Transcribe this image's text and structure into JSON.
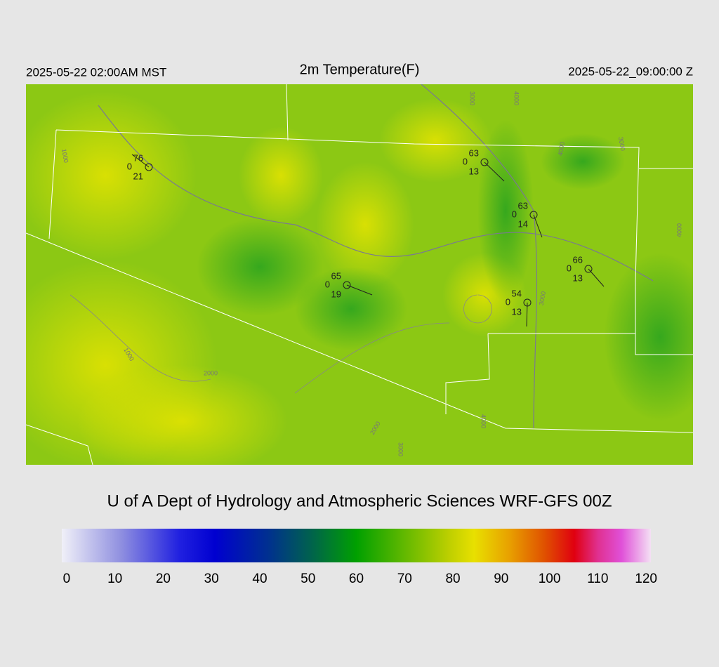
{
  "header": {
    "left": "2025-05-22 02:00AM MST",
    "title": "2m Temperature(F)",
    "right": "2025-05-22_09:00:00 Z"
  },
  "stations": [
    {
      "temperature": 76,
      "dewpoint": 0,
      "wind": 21
    },
    {
      "temperature": 63,
      "dewpoint": 0,
      "wind": 13
    },
    {
      "temperature": 63,
      "dewpoint": 0,
      "wind": 14
    },
    {
      "temperature": 65,
      "dewpoint": 0,
      "wind": 19
    },
    {
      "temperature": 66,
      "dewpoint": 0,
      "wind": 13
    },
    {
      "temperature": 54,
      "dewpoint": 0,
      "wind": 13
    }
  ],
  "contour_labels": [
    "1000",
    "1000",
    "2000",
    "2000",
    "3000",
    "4000",
    "4000",
    "4000",
    "3000",
    "4000",
    "3000",
    "3000"
  ],
  "credit": "U of A Dept of Hydrology and Atmospheric Sciences WRF-GFS 00Z",
  "colorbar": {
    "lim": [
      -1,
      121
    ],
    "ticks": [
      0,
      10,
      20,
      30,
      40,
      50,
      60,
      70,
      80,
      90,
      100,
      110,
      120
    ]
  }
}
